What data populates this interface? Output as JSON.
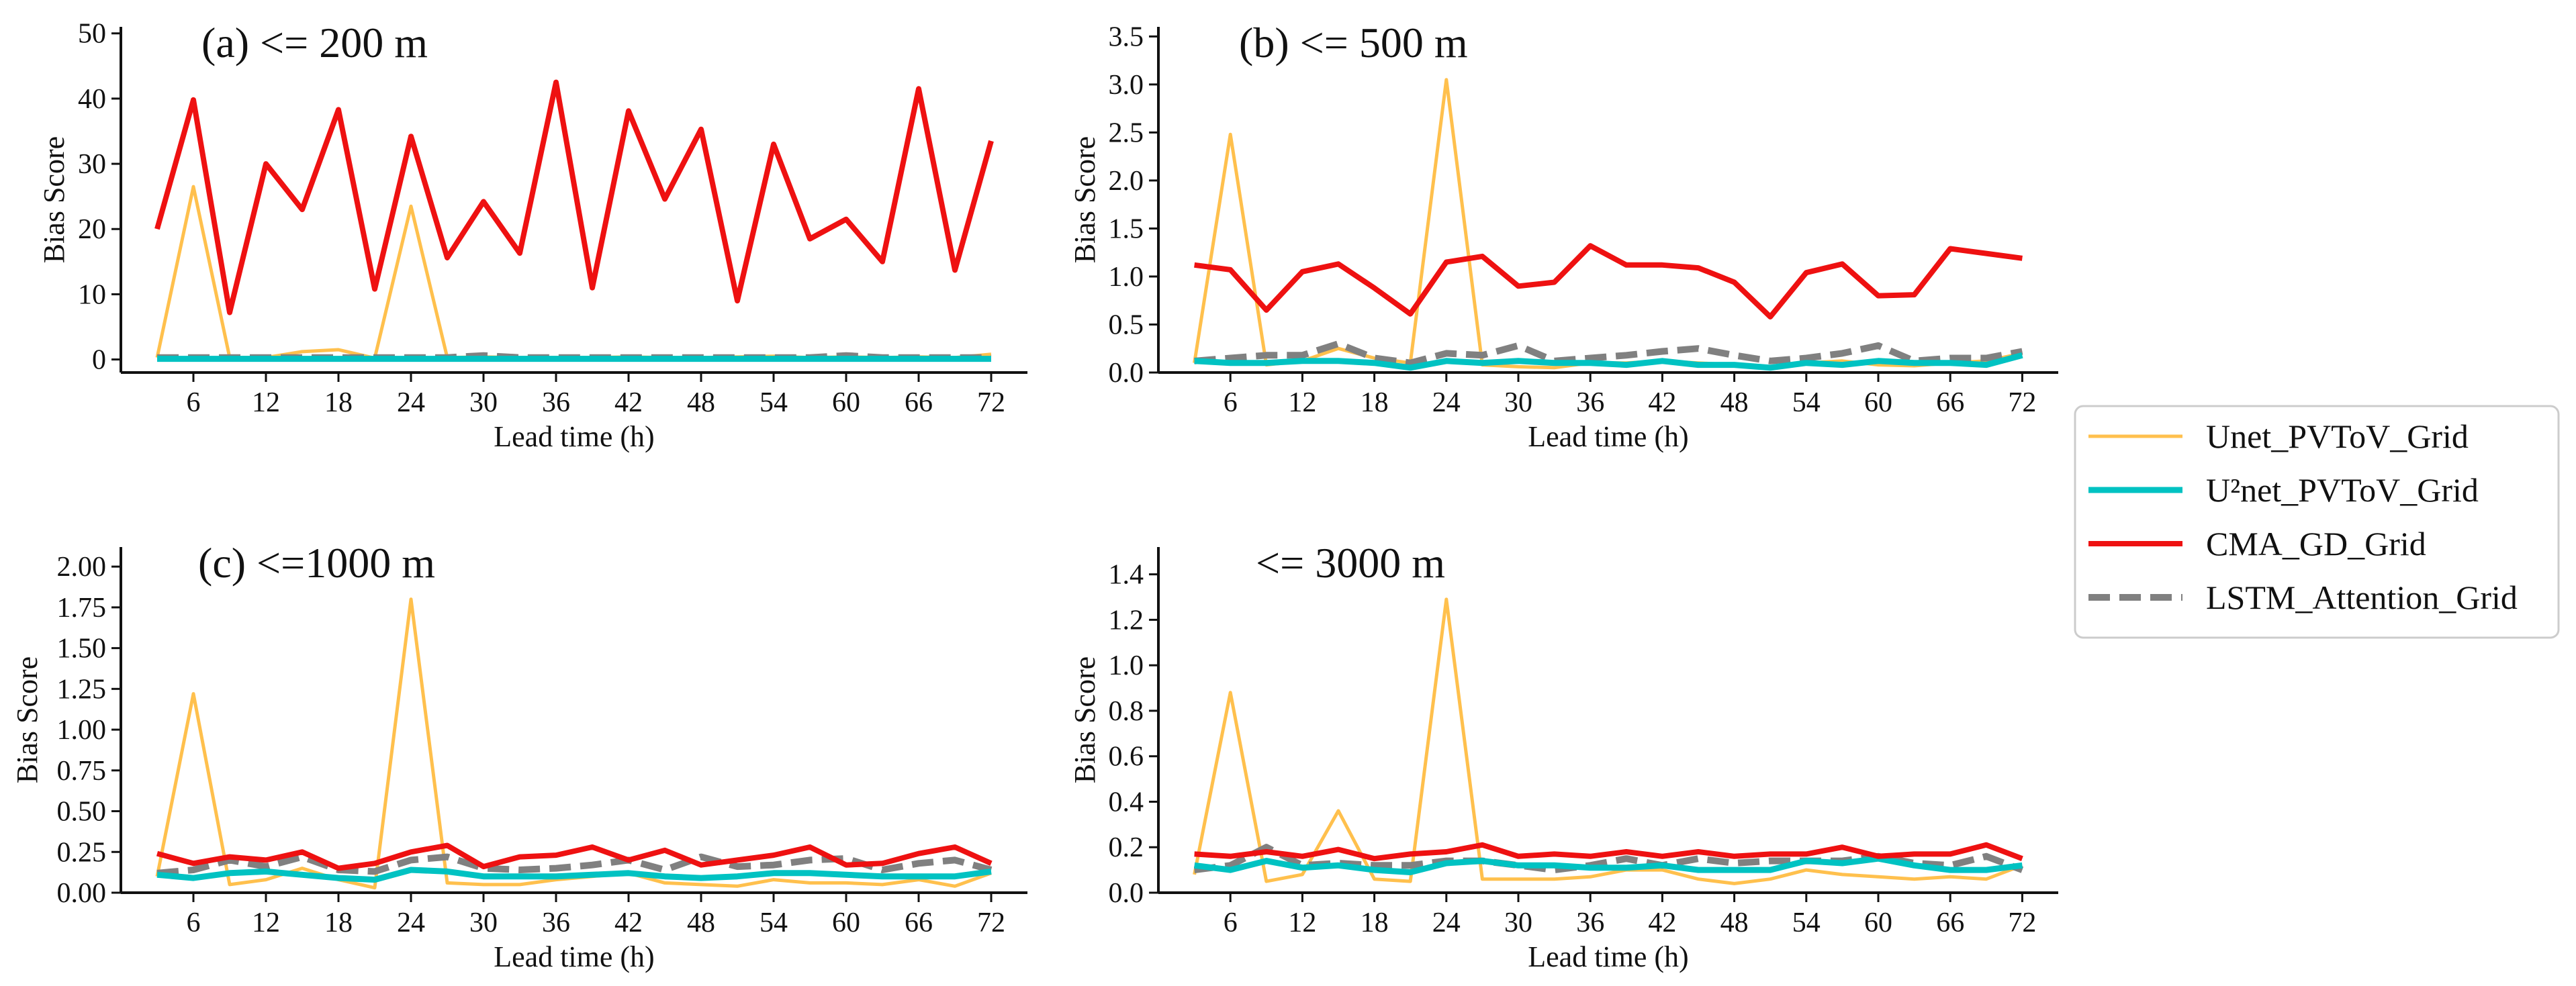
{
  "colors": {
    "unet": "#FFC04D",
    "u2net": "#00C2C2",
    "cma": "#EE1111",
    "lstm": "#808080",
    "axis": "#111111"
  },
  "legend": {
    "placement": "right",
    "entries": [
      {
        "key": "unet",
        "label": "Unet_PVToV_Grid",
        "style": "solid"
      },
      {
        "key": "u2net",
        "label": "U²net_PVToV_Grid",
        "style": "solid"
      },
      {
        "key": "cma",
        "label": "CMA_GD_Grid",
        "style": "solid"
      },
      {
        "key": "lstm",
        "label": "LSTM_Attention_Grid",
        "style": "dashed"
      }
    ]
  },
  "chart_data": [
    {
      "type": "line",
      "title": "(a) <= 200 m",
      "xlabel": "Lead time (h)",
      "ylabel": "Bias Score",
      "xlim": [
        0,
        75
      ],
      "ylim": [
        -2,
        51
      ],
      "xticks": [
        6,
        12,
        18,
        24,
        30,
        36,
        42,
        48,
        54,
        60,
        66,
        72
      ],
      "yticks": [
        0,
        10,
        20,
        30,
        40,
        50
      ],
      "ytick_labels": [
        "0",
        "10",
        "20",
        "30",
        "40",
        "50"
      ],
      "x": [
        3,
        6,
        9,
        12,
        15,
        18,
        21,
        24,
        27,
        30,
        33,
        36,
        39,
        42,
        45,
        48,
        51,
        54,
        57,
        60,
        63,
        66,
        69,
        72
      ],
      "series": [
        {
          "key": "unet",
          "name": "Unet_PVToV_Grid",
          "values": [
            0.3,
            26.5,
            0.3,
            0.3,
            1.2,
            1.5,
            0.2,
            23.5,
            0.3,
            0.4,
            0.3,
            0.3,
            0.3,
            0.4,
            0.3,
            0.3,
            0.4,
            0.5,
            0.3,
            0.4,
            0.3,
            0.4,
            0.3,
            0.8
          ]
        },
        {
          "key": "u2net",
          "name": "U²net_PVToV_Grid",
          "values": [
            0.1,
            0.1,
            0.1,
            0.1,
            0.1,
            0.1,
            0.1,
            0.1,
            0.1,
            0.1,
            0.1,
            0.1,
            0.1,
            0.1,
            0.1,
            0.1,
            0.1,
            0.1,
            0.1,
            0.1,
            0.1,
            0.1,
            0.1,
            0.1
          ]
        },
        {
          "key": "cma",
          "name": "CMA_GD_Grid",
          "values": [
            20.0,
            39.8,
            7.2,
            30.0,
            23.0,
            38.3,
            10.8,
            34.2,
            15.6,
            24.2,
            16.3,
            42.5,
            11.0,
            38.1,
            24.6,
            35.3,
            9.0,
            33.0,
            18.5,
            21.5,
            15.0,
            41.5,
            13.7,
            33.5
          ]
        },
        {
          "key": "lstm",
          "name": "LSTM_Attention_Grid",
          "values": [
            0.3,
            0.3,
            0.3,
            0.3,
            0.3,
            0.3,
            0.3,
            0.3,
            0.3,
            0.6,
            0.3,
            0.3,
            0.3,
            0.3,
            0.3,
            0.3,
            0.3,
            0.3,
            0.3,
            0.6,
            0.3,
            0.3,
            0.3,
            0.3
          ]
        }
      ]
    },
    {
      "type": "line",
      "title": "(b) <= 500 m",
      "xlabel": "Lead time (h)",
      "ylabel": "Bias Score",
      "xlim": [
        0,
        75
      ],
      "ylim": [
        0,
        3.6
      ],
      "xticks": [
        6,
        12,
        18,
        24,
        30,
        36,
        42,
        48,
        54,
        60,
        66,
        72
      ],
      "yticks": [
        0,
        0.5,
        1.0,
        1.5,
        2.0,
        2.5,
        3.0,
        3.5
      ],
      "ytick_labels": [
        "0.0",
        "0.5",
        "1.0",
        "1.5",
        "2.0",
        "2.5",
        "3.0",
        "3.5"
      ],
      "x": [
        3,
        6,
        9,
        12,
        15,
        18,
        21,
        24,
        27,
        30,
        33,
        36,
        39,
        42,
        45,
        48,
        51,
        54,
        57,
        60,
        63,
        66,
        69,
        72
      ],
      "series": [
        {
          "key": "unet",
          "name": "Unet_PVToV_Grid",
          "values": [
            0.1,
            2.48,
            0.08,
            0.12,
            0.25,
            0.15,
            0.1,
            3.05,
            0.08,
            0.06,
            0.05,
            0.1,
            0.1,
            0.12,
            0.1,
            0.08,
            0.06,
            0.1,
            0.12,
            0.08,
            0.07,
            0.1,
            0.12,
            0.2
          ]
        },
        {
          "key": "u2net",
          "name": "U²net_PVToV_Grid",
          "values": [
            0.12,
            0.1,
            0.1,
            0.12,
            0.12,
            0.1,
            0.05,
            0.12,
            0.1,
            0.12,
            0.1,
            0.1,
            0.08,
            0.12,
            0.08,
            0.08,
            0.05,
            0.1,
            0.08,
            0.12,
            0.1,
            0.1,
            0.08,
            0.18
          ]
        },
        {
          "key": "cma",
          "name": "CMA_GD_Grid",
          "values": [
            1.12,
            1.07,
            0.65,
            1.05,
            1.13,
            0.88,
            0.61,
            1.15,
            1.21,
            0.9,
            0.94,
            1.32,
            1.12,
            1.12,
            1.09,
            0.94,
            0.58,
            1.04,
            1.13,
            0.8,
            0.81,
            1.29,
            1.24,
            1.19
          ]
        },
        {
          "key": "lstm",
          "name": "LSTM_Attention_Grid",
          "values": [
            0.12,
            0.15,
            0.18,
            0.18,
            0.3,
            0.15,
            0.1,
            0.2,
            0.18,
            0.28,
            0.12,
            0.15,
            0.18,
            0.22,
            0.25,
            0.18,
            0.12,
            0.15,
            0.2,
            0.28,
            0.12,
            0.15,
            0.15,
            0.22
          ]
        }
      ]
    },
    {
      "type": "line",
      "title": "(c) <=1000 m",
      "xlabel": "Lead time (h)",
      "ylabel": "Bias Score",
      "xlim": [
        0,
        75
      ],
      "ylim": [
        0,
        2.12
      ],
      "xticks": [
        6,
        12,
        18,
        24,
        30,
        36,
        42,
        48,
        54,
        60,
        66,
        72
      ],
      "yticks": [
        0,
        0.25,
        0.5,
        0.75,
        1.0,
        1.25,
        1.5,
        1.75,
        2.0
      ],
      "ytick_labels": [
        "0.00",
        "0.25",
        "0.50",
        "0.75",
        "1.00",
        "1.25",
        "1.50",
        "1.75",
        "2.00"
      ],
      "x": [
        3,
        6,
        9,
        12,
        15,
        18,
        21,
        24,
        27,
        30,
        33,
        36,
        39,
        42,
        45,
        48,
        51,
        54,
        57,
        60,
        63,
        66,
        69,
        72
      ],
      "series": [
        {
          "key": "unet",
          "name": "Unet_PVToV_Grid",
          "values": [
            0.1,
            1.22,
            0.05,
            0.08,
            0.15,
            0.08,
            0.03,
            1.8,
            0.06,
            0.05,
            0.05,
            0.08,
            0.1,
            0.12,
            0.06,
            0.05,
            0.04,
            0.08,
            0.06,
            0.06,
            0.05,
            0.08,
            0.04,
            0.12
          ]
        },
        {
          "key": "u2net",
          "name": "U²net_PVToV_Grid",
          "values": [
            0.11,
            0.09,
            0.12,
            0.13,
            0.11,
            0.09,
            0.08,
            0.14,
            0.13,
            0.1,
            0.1,
            0.1,
            0.11,
            0.12,
            0.1,
            0.09,
            0.1,
            0.12,
            0.12,
            0.11,
            0.1,
            0.1,
            0.1,
            0.13
          ]
        },
        {
          "key": "cma",
          "name": "CMA_GD_Grid",
          "values": [
            0.24,
            0.18,
            0.22,
            0.2,
            0.25,
            0.15,
            0.18,
            0.25,
            0.29,
            0.16,
            0.22,
            0.23,
            0.28,
            0.2,
            0.26,
            0.17,
            0.2,
            0.23,
            0.28,
            0.17,
            0.18,
            0.24,
            0.28,
            0.18
          ]
        },
        {
          "key": "lstm",
          "name": "LSTM_Attention_Grid",
          "values": [
            0.12,
            0.14,
            0.2,
            0.16,
            0.22,
            0.14,
            0.13,
            0.2,
            0.22,
            0.15,
            0.14,
            0.15,
            0.17,
            0.2,
            0.14,
            0.22,
            0.16,
            0.17,
            0.2,
            0.21,
            0.14,
            0.18,
            0.2,
            0.14
          ]
        }
      ]
    },
    {
      "type": "line",
      "title": "<= 3000 m",
      "xlabel": "Lead time (h)",
      "ylabel": "Bias Score",
      "xlim": [
        0,
        75
      ],
      "ylim": [
        0,
        1.52
      ],
      "xticks": [
        6,
        12,
        18,
        24,
        30,
        36,
        42,
        48,
        54,
        60,
        66,
        72
      ],
      "yticks": [
        0,
        0.2,
        0.4,
        0.6,
        0.8,
        1.0,
        1.2,
        1.4
      ],
      "ytick_labels": [
        "0.0",
        "0.2",
        "0.4",
        "0.6",
        "0.8",
        "1.0",
        "1.2",
        "1.4"
      ],
      "x": [
        3,
        6,
        9,
        12,
        15,
        18,
        21,
        24,
        27,
        30,
        33,
        36,
        39,
        42,
        45,
        48,
        51,
        54,
        57,
        60,
        63,
        66,
        69,
        72
      ],
      "series": [
        {
          "key": "unet",
          "name": "Unet_PVToV_Grid",
          "values": [
            0.08,
            0.88,
            0.05,
            0.08,
            0.36,
            0.06,
            0.05,
            1.29,
            0.06,
            0.06,
            0.06,
            0.07,
            0.1,
            0.1,
            0.06,
            0.04,
            0.06,
            0.1,
            0.08,
            0.07,
            0.06,
            0.07,
            0.06,
            0.12
          ]
        },
        {
          "key": "u2net",
          "name": "U²net_PVToV_Grid",
          "values": [
            0.12,
            0.1,
            0.14,
            0.11,
            0.12,
            0.1,
            0.09,
            0.13,
            0.14,
            0.12,
            0.12,
            0.11,
            0.11,
            0.12,
            0.1,
            0.1,
            0.1,
            0.14,
            0.13,
            0.15,
            0.12,
            0.1,
            0.1,
            0.12
          ]
        },
        {
          "key": "cma",
          "name": "CMA_GD_Grid",
          "values": [
            0.17,
            0.16,
            0.18,
            0.16,
            0.19,
            0.15,
            0.17,
            0.18,
            0.21,
            0.16,
            0.17,
            0.16,
            0.18,
            0.16,
            0.18,
            0.16,
            0.17,
            0.17,
            0.2,
            0.16,
            0.17,
            0.17,
            0.21,
            0.15
          ]
        },
        {
          "key": "lstm",
          "name": "LSTM_Attention_Grid",
          "values": [
            0.1,
            0.12,
            0.2,
            0.12,
            0.13,
            0.12,
            0.12,
            0.14,
            0.14,
            0.12,
            0.1,
            0.12,
            0.15,
            0.12,
            0.15,
            0.13,
            0.14,
            0.14,
            0.14,
            0.16,
            0.13,
            0.12,
            0.16,
            0.1
          ]
        }
      ]
    }
  ]
}
